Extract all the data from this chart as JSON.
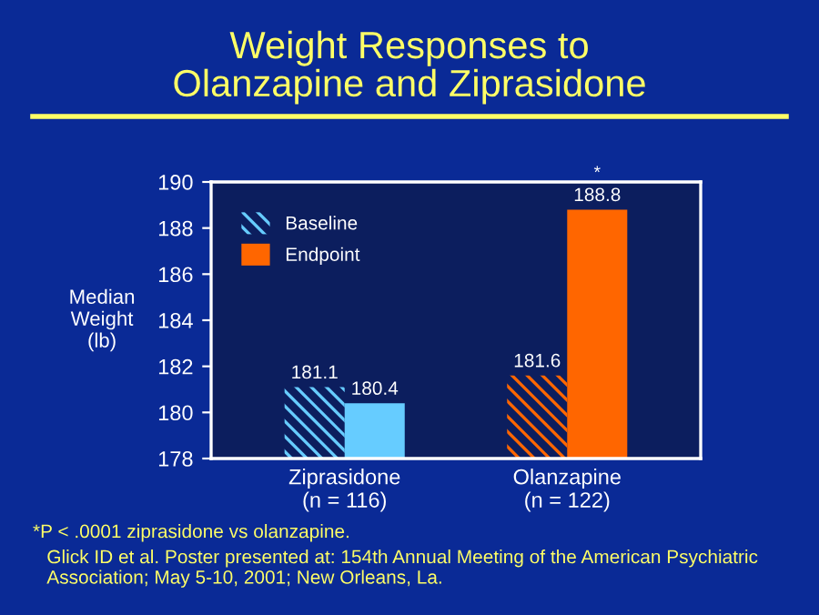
{
  "chart_data": {
    "type": "bar",
    "title": "Weight Responses to\nOlanzapine and Ziprasidone",
    "ylabel": "Median\nWeight\n(lb)",
    "categories": [
      "Ziprasidone\n(n = 116)",
      "Olanzapine\n(n = 122)"
    ],
    "series": [
      {
        "name": "Baseline",
        "color": "#66ccff",
        "colors": [
          "#66ccff",
          "#ff6600"
        ],
        "values": [
          181.1,
          181.6
        ]
      },
      {
        "name": "Endpoint",
        "color": "#ff6600",
        "colors": [
          "#66ccff",
          "#ff6600"
        ],
        "values": [
          180.4,
          188.8
        ]
      }
    ],
    "ylim": [
      178,
      190
    ],
    "yticks": [
      178,
      180,
      182,
      184,
      186,
      188,
      190
    ],
    "grid": false,
    "legend": "top left",
    "data_labels": true,
    "annotations": [
      {
        "text": "*",
        "x": "Olanzapine\n(n = 122)",
        "y": 188.8
      },
      "*P < .0001 ziprasidone vs olanzapine.",
      "Glick ID et al. Poster presented at: 154th Annual Meeting of the American Psychiatric\nAssociation; May 5-10, 2001; New Orleans, La."
    ]
  }
}
